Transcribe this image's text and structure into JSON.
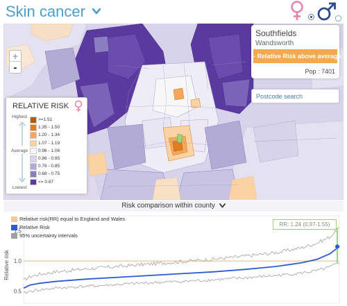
{
  "header": {
    "title": "Skin cancer",
    "sex_female_selected": true
  },
  "colors": {
    "accent": "#4a9fcf",
    "female_pink": "#e87fa8",
    "male_blue": "#2d4a8a",
    "badge_orange": "#f5a94f",
    "rr_line": "#f5c89a",
    "relative_risk": "#2a5ad6",
    "uncertainty": "#a0a0a0",
    "highlight_green": "#9fd37a"
  },
  "map": {
    "zoom_in": "+",
    "zoom_out": "-"
  },
  "info_panel": {
    "area_name": "Southfields",
    "district": "Wandsworth",
    "badge": "- Relative Risk above average",
    "population": "Pop : 7401"
  },
  "postcode": {
    "placeholder": "Postcode search"
  },
  "legend": {
    "title": "RELATIVE RISK",
    "highest": "Highest",
    "average": "Average",
    "lowest": "Lowest",
    "bins": [
      {
        "label": ">=1.51",
        "color": "#b25c0e"
      },
      {
        "label": "1.35 - 1.50",
        "color": "#e07d22"
      },
      {
        "label": "1.20 - 1.34",
        "color": "#f4a85a"
      },
      {
        "label": "1.07 - 1.19",
        "color": "#fad2a3"
      },
      {
        "label": "0.96 - 1.06",
        "color": "#f7f7f7"
      },
      {
        "label": "0.86 - 0.95",
        "color": "#d6d3ea"
      },
      {
        "label": "0.76 - 0.85",
        "color": "#b2abd6"
      },
      {
        "label": "0.68 - 0.75",
        "color": "#8a7dc0"
      },
      {
        "label": "<= 0.67",
        "color": "#5a3a9e"
      }
    ]
  },
  "comparison": {
    "header": "Risk comparison within county"
  },
  "chart_data": {
    "type": "line",
    "ylabel": "Relative risk",
    "yticks": [
      0.5,
      1.0,
      1.5
    ],
    "ylim": [
      0.3,
      1.75
    ],
    "reference_value": 1.0,
    "legend": [
      "Relative risk(RR) equal to England and Wales",
      "Relative Risk",
      "95% uncertainty intervals"
    ],
    "highlight_label": "RR: 1.24 (0.97-1.55)",
    "highlight": {
      "rr": 1.24,
      "lower": 0.97,
      "upper": 1.55
    },
    "rr_curve": [
      [
        0,
        0.55
      ],
      [
        0.02,
        0.6
      ],
      [
        0.05,
        0.63
      ],
      [
        0.1,
        0.66
      ],
      [
        0.2,
        0.7
      ],
      [
        0.3,
        0.73
      ],
      [
        0.4,
        0.76
      ],
      [
        0.5,
        0.79
      ],
      [
        0.6,
        0.82
      ],
      [
        0.7,
        0.86
      ],
      [
        0.8,
        0.91
      ],
      [
        0.88,
        0.97
      ],
      [
        0.93,
        1.03
      ],
      [
        0.97,
        1.12
      ],
      [
        0.99,
        1.2
      ],
      [
        1.0,
        1.24
      ]
    ],
    "lower_curve": [
      [
        0,
        0.46
      ],
      [
        0.02,
        0.5
      ],
      [
        0.05,
        0.52
      ],
      [
        0.1,
        0.55
      ],
      [
        0.2,
        0.58
      ],
      [
        0.3,
        0.61
      ],
      [
        0.4,
        0.64
      ],
      [
        0.5,
        0.66
      ],
      [
        0.6,
        0.69
      ],
      [
        0.7,
        0.72
      ],
      [
        0.8,
        0.76
      ],
      [
        0.88,
        0.8
      ],
      [
        0.93,
        0.84
      ],
      [
        0.97,
        0.9
      ],
      [
        0.99,
        0.95
      ],
      [
        1.0,
        0.97
      ]
    ],
    "upper_curve": [
      [
        0,
        0.68
      ],
      [
        0.02,
        0.74
      ],
      [
        0.05,
        0.78
      ],
      [
        0.1,
        0.82
      ],
      [
        0.2,
        0.87
      ],
      [
        0.3,
        0.91
      ],
      [
        0.4,
        0.95
      ],
      [
        0.5,
        0.99
      ],
      [
        0.6,
        1.03
      ],
      [
        0.7,
        1.08
      ],
      [
        0.8,
        1.14
      ],
      [
        0.88,
        1.22
      ],
      [
        0.93,
        1.3
      ],
      [
        0.97,
        1.4
      ],
      [
        0.99,
        1.5
      ],
      [
        1.0,
        1.55
      ]
    ]
  }
}
